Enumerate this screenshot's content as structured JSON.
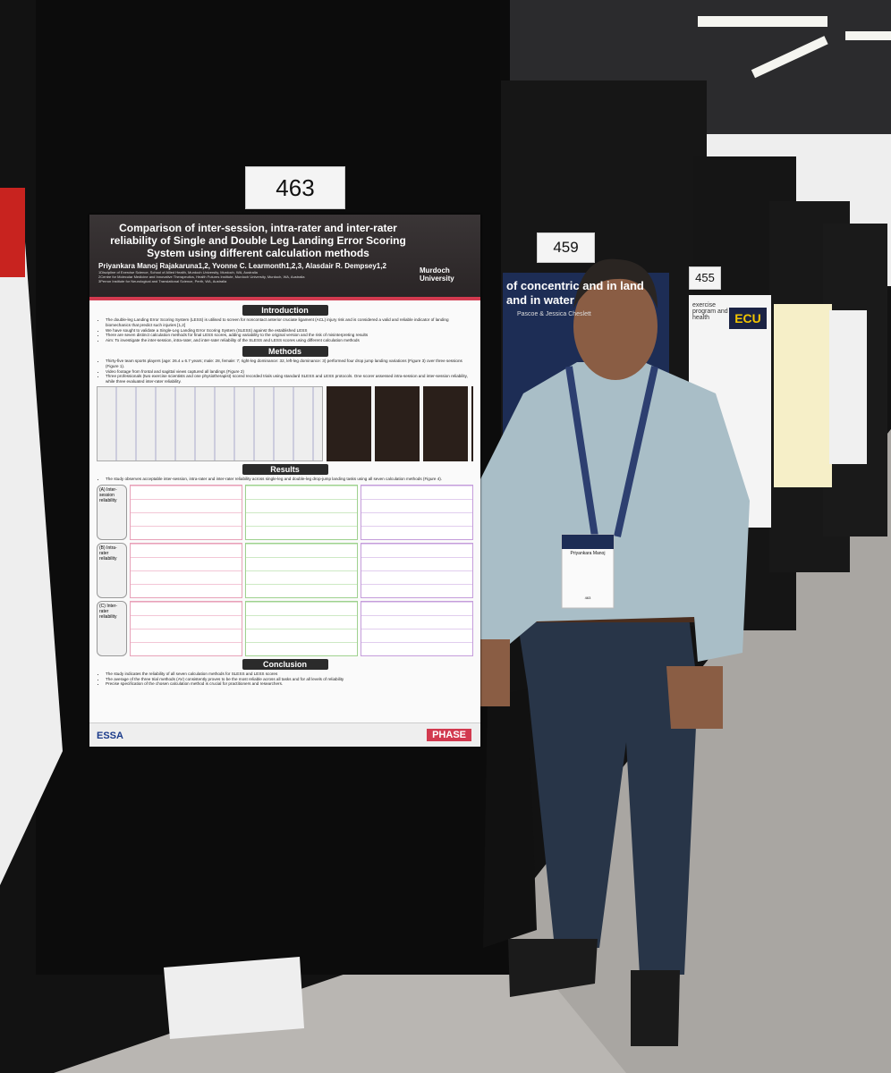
{
  "board_numbers": [
    "463",
    "459",
    "455"
  ],
  "poster": {
    "title": "Comparison of inter-session, intra-rater and inter-rater reliability of Single and Double Leg Landing Error Scoring System using different calculation methods",
    "authors": "Priyankara Manoj Rajakaruna1,2, Yvonne C. Learmonth1,2,3, Alasdair R. Dempsey1,2",
    "affiliations": [
      "1Discipline of Exercise Science, School of Allied Health, Murdoch University, Murdoch, WA, Australia",
      "2Centre for Molecular Medicine and Innovative Therapeutics, Health Futures Institute, Murdoch University, Murdoch, WA, Australia",
      "3Perron Institute for Neurological and Translational Science, Perth, WA, Australia"
    ],
    "logo": "Murdoch University",
    "sections": [
      {
        "heading": "Introduction",
        "bullets": [
          "The double-leg Landing Error Scoring System (LESS) is utilised to screen for noncontact anterior cruciate ligament (ACL) injury risk and is considered a valid and reliable indicator of landing biomechanics that predict such injuries [1,2]",
          "We have sought to validate a Single-Leg Landing Error Scoring System (SLESS) against the established LESS",
          "There are seven distinct calculation methods for final LESS scores, adding variability to the original version and the risk of misinterpreting results",
          "Aim: To investigate the inter-session, intra-rater, and inter-rater reliability of the SLESS and LESS scores using different calculation methods"
        ]
      },
      {
        "heading": "Methods",
        "bullets": [
          "Thirty-five team sports players (age: 26.4 ± 6.7 years; male: 28, female: 7; right-leg dominance: 32, left-leg dominance: 3) performed four drop jump landing variations (Figure 3) over three sessions (Figure 1).",
          "Video footage from frontal and sagittal views captured all landings (Figure 2)",
          "Three professionals (two exercise scientists and one physiotherapist) scored recorded trials using standard SLESS and LESS protocols. One scorer assessed intra-session and inter-session reliability, while three evaluated inter-rater reliability."
        ]
      },
      {
        "heading": "Results",
        "bullets": [
          "The study observes acceptable inter-session, intra-rater and inter-rater reliability across single-leg and double-leg drop-jump landing tasks using all seven calculation methods (Figure 4)."
        ],
        "panels": [
          "(A) Inter-session reliability",
          "(B) Intra-rater reliability",
          "(C) Inter-rater reliability"
        ]
      },
      {
        "heading": "Conclusion",
        "bullets": [
          "The study indicates the reliability of all seven calculation methods for SLESS and LESS scores",
          "The average of the three trial methods (AV) consistently proves to be the most reliable across all tasks and for all levels of reliability",
          "Precise specification of the chosen calculation method is crucial for practitioners and researchers."
        ]
      }
    ],
    "footer_left": "ESSA",
    "footer_right": "PHASE"
  },
  "neighbor_poster": {
    "title": "of concentric and in land and in water",
    "authors": "Pascoe & Jessica Cheslett"
  },
  "ecu_poster": {
    "logo": "ECU",
    "title": "exercise program and health"
  },
  "badge": {
    "name": "Priyankara Manoj",
    "number": "463"
  }
}
